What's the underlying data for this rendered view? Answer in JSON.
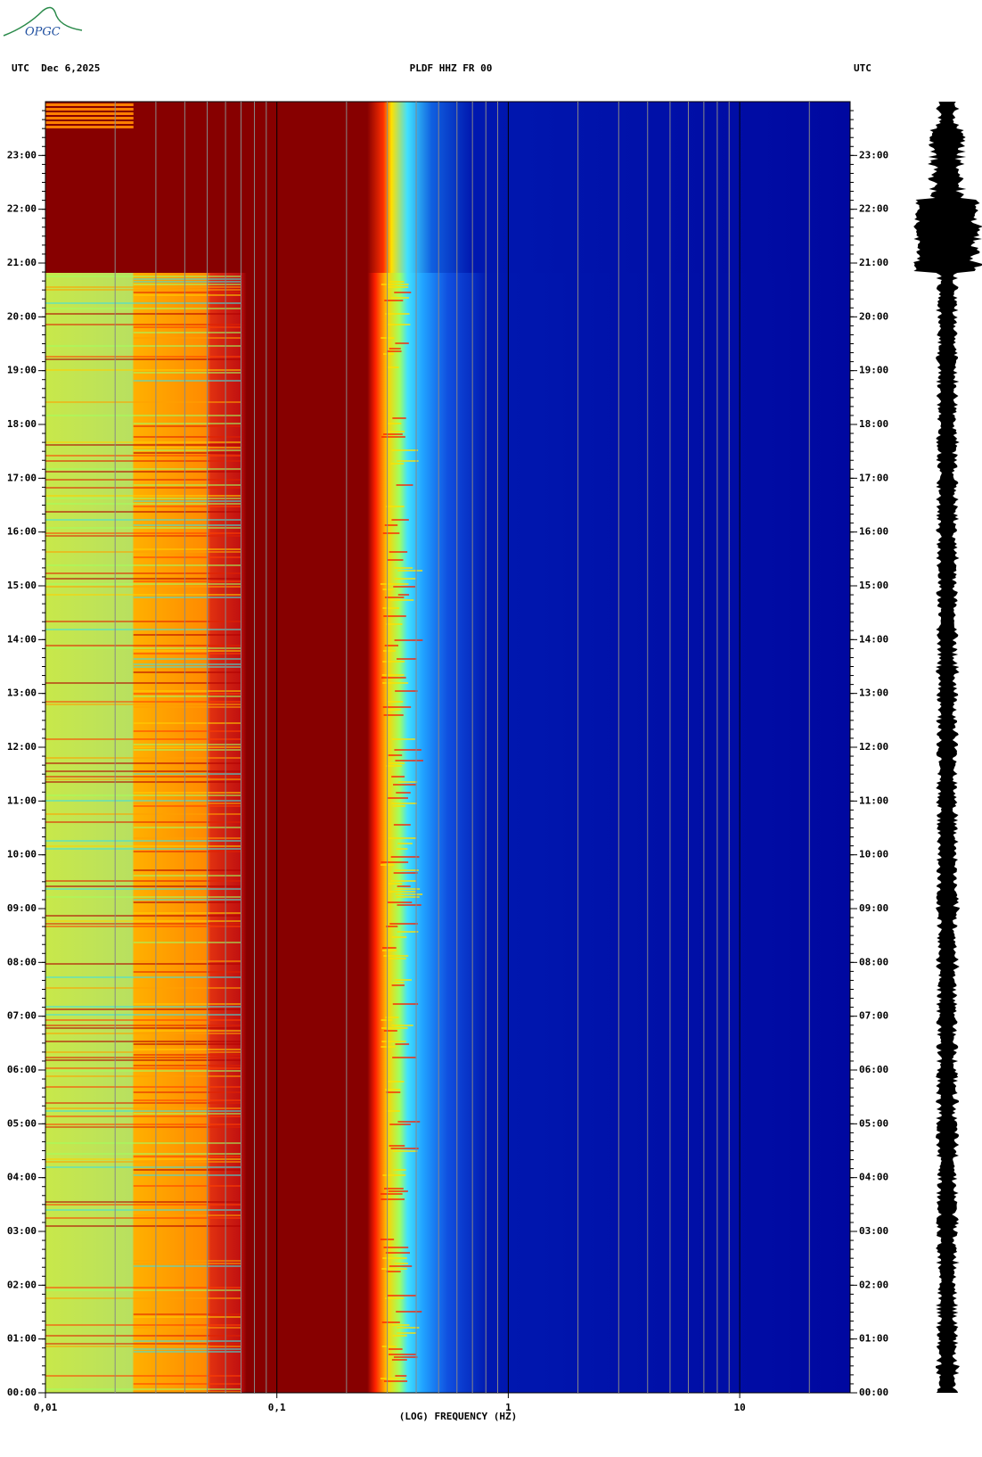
{
  "logo": "OPGC",
  "chart_data": {
    "type": "spectrogram",
    "title": "PLDF HHZ FR 00",
    "date_label": "UTC  Dec 6,2025",
    "right_label": "UTC",
    "xlabel": "(LOG) FREQUENCY (HZ)",
    "xscale": "log",
    "xlim": [
      0.01,
      30
    ],
    "xticks": [
      {
        "value": 0.01,
        "label": "0,01"
      },
      {
        "value": 0.1,
        "label": "0,1"
      },
      1,
      10
    ],
    "ylim": [
      0,
      24
    ],
    "yticks": [
      {
        "value": 0,
        "label": "00:00"
      },
      {
        "value": 1,
        "label": "01:00"
      },
      {
        "value": 2,
        "label": "02:00"
      },
      {
        "value": 3,
        "label": "03:00"
      },
      {
        "value": 4,
        "label": "04:00"
      },
      {
        "value": 5,
        "label": "05:00"
      },
      {
        "value": 6,
        "label": "06:00"
      },
      {
        "value": 7,
        "label": "07:00"
      },
      {
        "value": 8,
        "label": "08:00"
      },
      {
        "value": 9,
        "label": "09:00"
      },
      {
        "value": 10,
        "label": "10:00"
      },
      {
        "value": 11,
        "label": "11:00"
      },
      {
        "value": 12,
        "label": "12:00"
      },
      {
        "value": 13,
        "label": "13:00"
      },
      {
        "value": 14,
        "label": "14:00"
      },
      {
        "value": 15,
        "label": "15:00"
      },
      {
        "value": 16,
        "label": "16:00"
      },
      {
        "value": 17,
        "label": "17:00"
      },
      {
        "value": 18,
        "label": "18:00"
      },
      {
        "value": 19,
        "label": "19:00"
      },
      {
        "value": 20,
        "label": "20:00"
      },
      {
        "value": 21,
        "label": "21:00"
      },
      {
        "value": 22,
        "label": "22:00"
      },
      {
        "value": 23,
        "label": "23:00"
      }
    ]
  }
}
